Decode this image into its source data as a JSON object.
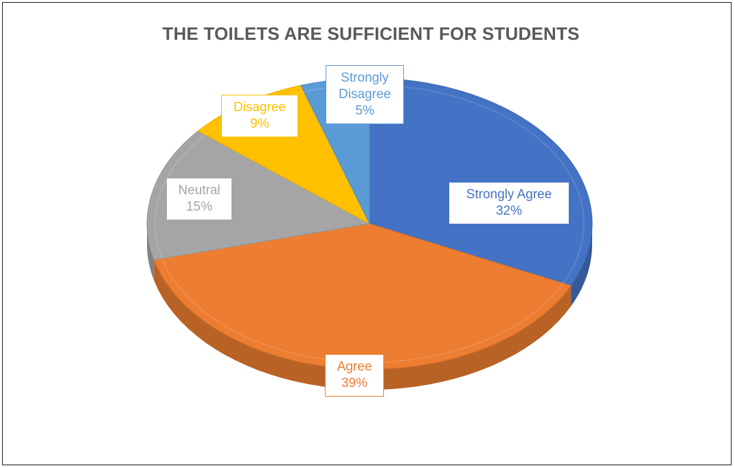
{
  "chart_data": {
    "type": "pie",
    "title": "THE TOILETS ARE SUFFICIENT FOR STUDENTS",
    "slices": [
      {
        "label": "Strongly Agree",
        "value": 32,
        "value_label": "32%",
        "color": "#4472C4"
      },
      {
        "label": "Agree",
        "value": 39,
        "value_label": "39%",
        "color": "#ED7D31"
      },
      {
        "label": "Neutral",
        "value": 15,
        "value_label": "15%",
        "color": "#A5A5A5"
      },
      {
        "label": "Disagree",
        "value": 9,
        "value_label": "9%",
        "color": "#FFC000"
      },
      {
        "label": "Strongly Disagree",
        "value": 5,
        "value_label": "5%",
        "color": "#5B9BD5"
      }
    ],
    "start_angle": "12 o'clock",
    "direction": "clockwise",
    "style": "3d",
    "legend": "none",
    "data_labels": "category and percentage"
  }
}
